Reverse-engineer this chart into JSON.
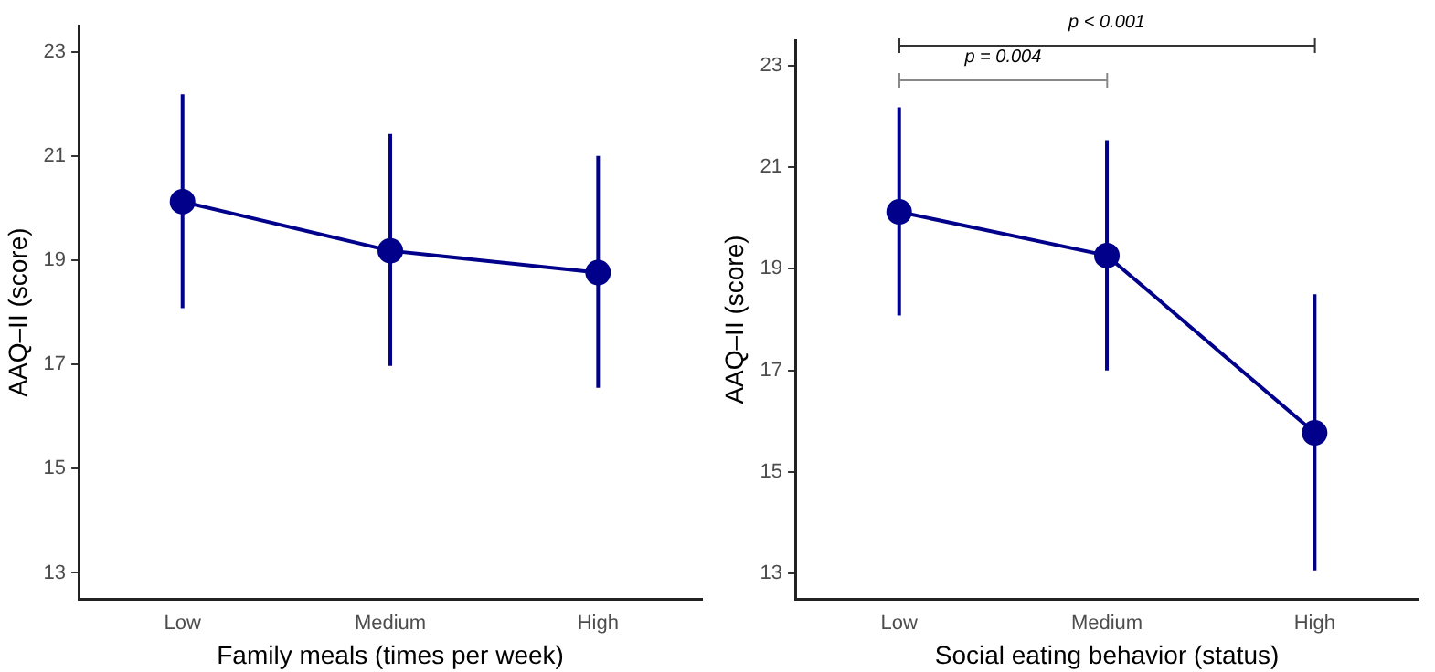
{
  "chart_data": [
    {
      "type": "line",
      "xlabel": "Family meals (times per week)",
      "ylabel": "AAQ–II (score)",
      "categories": [
        "Low",
        "Medium",
        "High"
      ],
      "series": [
        {
          "color": "#00008b",
          "values": [
            20.12,
            19.18,
            18.76
          ],
          "errors": [
            [
              18.08,
              22.18
            ],
            [
              16.97,
              21.42
            ],
            [
              16.55,
              21.0
            ]
          ]
        }
      ],
      "ylim": [
        12.5,
        23.5
      ],
      "yticks": [
        13,
        15,
        17,
        19,
        21,
        23
      ],
      "grid": false,
      "legend": false,
      "marker": "circle",
      "line_style": "solid"
    },
    {
      "type": "line",
      "xlabel": "Social eating behavior (status)",
      "ylabel": "AAQ–II (score)",
      "categories": [
        "Low",
        "Medium",
        "High"
      ],
      "series": [
        {
          "color": "#00008b",
          "values": [
            20.12,
            19.26,
            15.77
          ],
          "errors": [
            [
              18.08,
              22.18
            ],
            [
              17.0,
              21.53
            ],
            [
              13.06,
              18.5
            ]
          ]
        }
      ],
      "ylim": [
        12.5,
        23.5
      ],
      "yticks": [
        13,
        15,
        17,
        19,
        21,
        23
      ],
      "grid": false,
      "legend": false,
      "marker": "circle",
      "line_style": "solid",
      "annotations": [
        "p = 0.004",
        "p < 0.001"
      ]
    }
  ]
}
